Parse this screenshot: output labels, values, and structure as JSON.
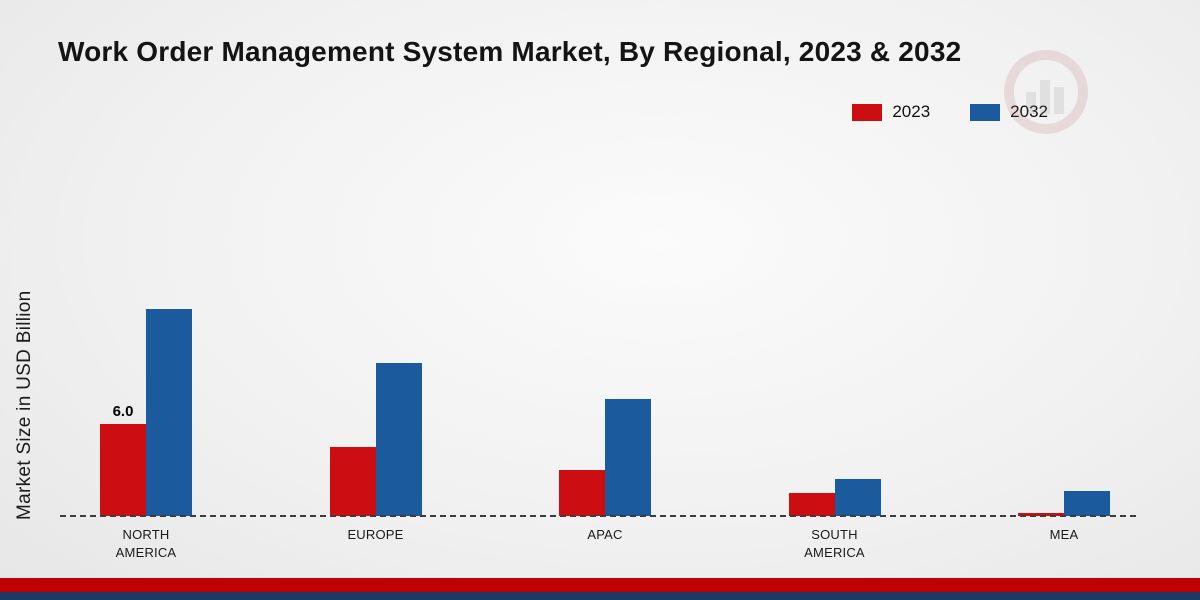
{
  "page": {
    "title": "Work Order Management System Market, By Regional, 2023 & 2032"
  },
  "ylabel": "Market Size in USD Billion",
  "legend": [
    {
      "label": "2023",
      "color": "#cc0d12"
    },
    {
      "label": "2032",
      "color": "#1b5a9c"
    }
  ],
  "chart_data": {
    "type": "bar",
    "title": "Work Order Management System Market, By Regional, 2023 & 2032",
    "xlabel": "",
    "ylabel": "Market Size in USD Billion",
    "categories": [
      "NORTH AMERICA",
      "EUROPE",
      "APAC",
      "SOUTH AMERICA",
      "MEA"
    ],
    "series": [
      {
        "name": "2023",
        "color": "#cc0d12",
        "values": [
          6.0,
          4.5,
          3.0,
          1.5,
          0.2
        ]
      },
      {
        "name": "2032",
        "color": "#1b5a9c",
        "values": [
          13.5,
          10.0,
          7.6,
          2.4,
          1.6
        ]
      }
    ],
    "bar_label": {
      "category_index": 0,
      "series_index": 0,
      "text": "6.0"
    },
    "ylim": [
      0,
      20
    ],
    "grid": false,
    "legend_position": "top-right",
    "baseline_style": "dashed"
  },
  "footer": {
    "red_band_color": "#c00000",
    "navy_band_color": "#1f3864"
  }
}
